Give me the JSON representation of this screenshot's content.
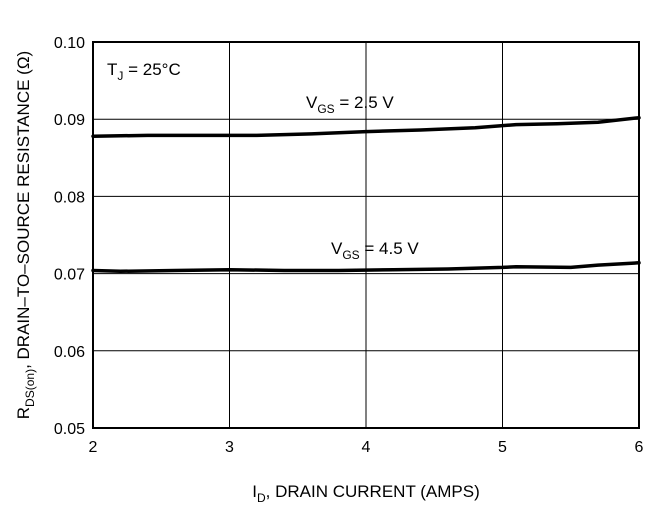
{
  "chart_data": {
    "type": "line",
    "xlabel": {
      "main": "I",
      "sub": "D",
      "rest": ", DRAIN CURRENT (AMPS)"
    },
    "ylabel": {
      "main": "R",
      "sub": "DS(on)",
      "rest": ", DRAIN–TO–SOURCE RESISTANCE (Ω)"
    },
    "xlim": [
      2,
      6
    ],
    "ylim": [
      0.05,
      0.1
    ],
    "x_ticks": [
      {
        "value": 2,
        "label": "2"
      },
      {
        "value": 3,
        "label": "3"
      },
      {
        "value": 4,
        "label": "4"
      },
      {
        "value": 5,
        "label": "5"
      },
      {
        "value": 6,
        "label": "6"
      }
    ],
    "y_ticks": [
      {
        "value": 0.05,
        "label": "0.05"
      },
      {
        "value": 0.06,
        "label": "0.06"
      },
      {
        "value": 0.07,
        "label": "0.07"
      },
      {
        "value": 0.08,
        "label": "0.08"
      },
      {
        "value": 0.09,
        "label": "0.09"
      },
      {
        "value": 0.1,
        "label": "0.10"
      }
    ],
    "grid": true,
    "condition": {
      "main": "T",
      "sub": "J",
      "rest": " = 25°C"
    },
    "series": [
      {
        "label": {
          "main": "V",
          "sub": "GS",
          "rest": " = 2.5 V"
        },
        "x": [
          2.0,
          2.4,
          2.8,
          3.2,
          3.6,
          4.0,
          4.4,
          4.8,
          5.1,
          5.4,
          5.7,
          6.0
        ],
        "y": [
          0.0878,
          0.0879,
          0.0879,
          0.0879,
          0.0881,
          0.0884,
          0.0886,
          0.0889,
          0.0893,
          0.0894,
          0.0896,
          0.0902
        ]
      },
      {
        "label": {
          "main": "V",
          "sub": "GS",
          "rest": " = 4.5 V"
        },
        "x": [
          2.0,
          2.2,
          2.6,
          3.0,
          3.4,
          3.8,
          4.2,
          4.6,
          5.0,
          5.1,
          5.5,
          5.7,
          6.0
        ],
        "y": [
          0.0704,
          0.0703,
          0.0704,
          0.0705,
          0.0704,
          0.0704,
          0.0705,
          0.0706,
          0.0708,
          0.0709,
          0.0708,
          0.0711,
          0.0714
        ]
      }
    ]
  }
}
